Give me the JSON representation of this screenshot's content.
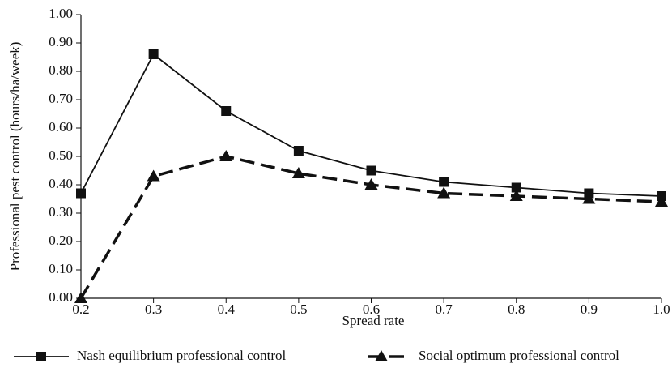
{
  "chart_data": {
    "type": "line",
    "x_label": "Spread rate",
    "y_label": "Professional pest control (hours/ha/week)",
    "x": [
      0.2,
      0.3,
      0.4,
      0.5,
      0.6,
      0.7,
      0.8,
      0.9,
      1.0
    ],
    "series": [
      {
        "name": "Nash equilibrium professional control",
        "color": "#111111",
        "marker": "square",
        "dashed": false,
        "values": [
          0.37,
          0.86,
          0.66,
          0.52,
          0.45,
          0.41,
          0.39,
          0.37,
          0.36
        ]
      },
      {
        "name": "Social optimum professional control",
        "color": "#111111",
        "marker": "triangle",
        "dashed": true,
        "values": [
          0,
          0.43,
          0.5,
          0.44,
          0.4,
          0.37,
          0.36,
          0.35,
          0.34
        ]
      }
    ],
    "xlim": [
      0.2,
      1.0
    ],
    "xticks": [
      0.2,
      0.3,
      0.4,
      0.5,
      0.6,
      0.7,
      0.8,
      0.9,
      {
        "value": 1,
        "label": "1.0"
      }
    ],
    "ylim": [
      0,
      1
    ],
    "yticks": [
      {
        "value": 0,
        "label": "0.00"
      },
      {
        "value": 0.1,
        "label": "0.10"
      },
      {
        "value": 0.2,
        "label": "0.20"
      },
      {
        "value": 0.3,
        "label": "0.30"
      },
      {
        "value": 0.4,
        "label": "0.40"
      },
      {
        "value": 0.5,
        "label": "0.50"
      },
      {
        "value": 0.6,
        "label": "0.60"
      },
      {
        "value": 0.7,
        "label": "0.70"
      },
      {
        "value": 0.8,
        "label": "0.80"
      },
      {
        "value": 0.9,
        "label": "0.90"
      },
      {
        "value": 1,
        "label": "1.00"
      }
    ],
    "legend": "bottom"
  }
}
